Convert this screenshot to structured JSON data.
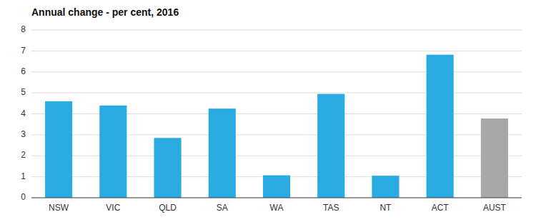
{
  "chart_data": {
    "type": "bar",
    "title": "Annual change - per cent, 2016",
    "categories": [
      "NSW",
      "VIC",
      "QLD",
      "SA",
      "WA",
      "TAS",
      "NT",
      "ACT",
      "AUST"
    ],
    "values": [
      4.6,
      4.4,
      2.85,
      4.25,
      1.07,
      4.95,
      1.05,
      6.82,
      3.78
    ],
    "colors": [
      "#29ABE2",
      "#29ABE2",
      "#29ABE2",
      "#29ABE2",
      "#29ABE2",
      "#29ABE2",
      "#29ABE2",
      "#29ABE2",
      "#A8A8A8"
    ],
    "ylim": [
      0,
      8
    ],
    "yticks": [
      0,
      1,
      2,
      3,
      4,
      5,
      6,
      7,
      8
    ],
    "grid": true
  }
}
